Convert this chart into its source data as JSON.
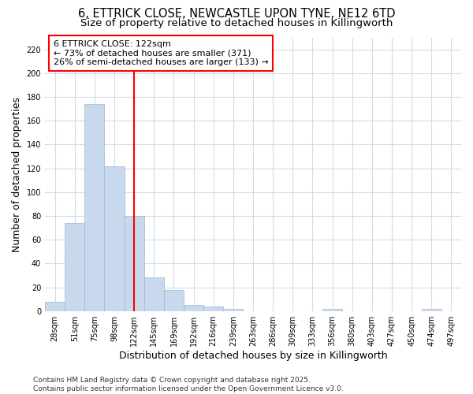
{
  "title": "6, ETTRICK CLOSE, NEWCASTLE UPON TYNE, NE12 6TD",
  "subtitle": "Size of property relative to detached houses in Killingworth",
  "xlabel": "Distribution of detached houses by size in Killingworth",
  "ylabel": "Number of detached properties",
  "bar_color": "#c8d8ed",
  "bar_edge_color": "#9ab8d4",
  "vline_color": "red",
  "annotation_text": "6 ETTRICK CLOSE: 122sqm\n← 73% of detached houses are smaller (371)\n26% of semi-detached houses are larger (133) →",
  "annotation_box_color": "white",
  "annotation_box_edge_color": "red",
  "categories": [
    "28sqm",
    "51sqm",
    "75sqm",
    "98sqm",
    "122sqm",
    "145sqm",
    "169sqm",
    "192sqm",
    "216sqm",
    "239sqm",
    "263sqm",
    "286sqm",
    "309sqm",
    "333sqm",
    "356sqm",
    "380sqm",
    "403sqm",
    "427sqm",
    "450sqm",
    "474sqm",
    "497sqm"
  ],
  "values": [
    8,
    74,
    174,
    122,
    80,
    28,
    18,
    5,
    4,
    2,
    0,
    0,
    0,
    0,
    2,
    0,
    0,
    0,
    0,
    2,
    0
  ],
  "vline_idx": 4,
  "ylim": [
    0,
    230
  ],
  "yticks": [
    0,
    20,
    40,
    60,
    80,
    100,
    120,
    140,
    160,
    180,
    200,
    220
  ],
  "footer": "Contains HM Land Registry data © Crown copyright and database right 2025.\nContains public sector information licensed under the Open Government Licence v3.0.",
  "bg_color": "#ffffff",
  "grid_color": "#d0dce8",
  "title_fontsize": 10.5,
  "subtitle_fontsize": 9.5,
  "axis_label_fontsize": 9,
  "tick_fontsize": 7,
  "footer_fontsize": 6.5,
  "annotation_fontsize": 8
}
